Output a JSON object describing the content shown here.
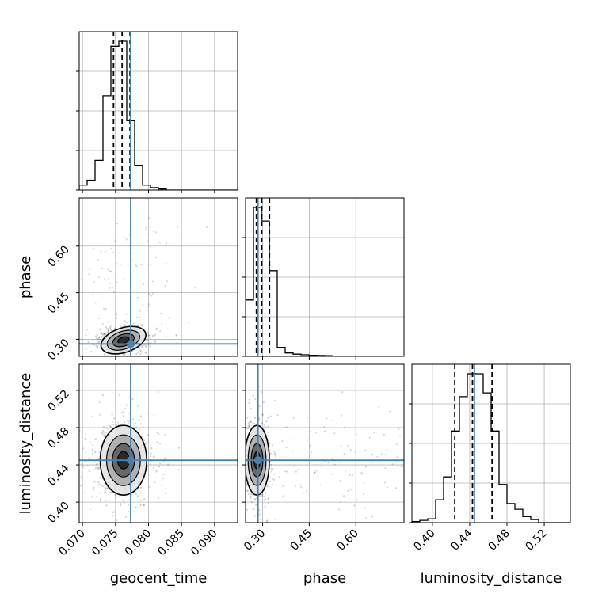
{
  "chart_data": {
    "type": "corner",
    "parameters": [
      "geocent_time",
      "phase",
      "luminosity_distance"
    ],
    "truths": [
      0.0773,
      0.285,
      0.445
    ],
    "truth_color": "#4682b4",
    "ranges": [
      [
        0.0695,
        0.0935
      ],
      [
        0.245,
        0.755
      ],
      [
        0.378,
        0.548
      ]
    ],
    "ticks": {
      "geocent_time": {
        "values": [
          0.07,
          0.075,
          0.08,
          0.085,
          0.09
        ],
        "labels": [
          "0.070",
          "0.075",
          "0.080",
          "0.085",
          "0.090"
        ]
      },
      "phase": {
        "values": [
          0.3,
          0.45,
          0.6
        ],
        "labels": [
          "0.30",
          "0.45",
          "0.60"
        ]
      },
      "luminosity_distance": {
        "values": [
          0.4,
          0.44,
          0.48,
          0.52
        ],
        "labels": [
          "0.40",
          "0.44",
          "0.48",
          "0.52"
        ]
      }
    },
    "quantiles": {
      "geocent_time": [
        0.0747,
        0.076,
        0.0772
      ],
      "phase": [
        0.28,
        0.297,
        0.322
      ],
      "luminosity_distance": [
        0.424,
        0.443,
        0.464
      ]
    },
    "histograms": {
      "geocent_time": {
        "edges": [
          0.0695,
          0.0707,
          0.0719,
          0.0731,
          0.0743,
          0.0755,
          0.0767,
          0.0779,
          0.0791,
          0.0803,
          0.0815,
          0.0827,
          0.0935
        ],
        "counts": [
          1,
          2,
          6,
          19,
          29,
          30,
          14,
          5,
          1,
          0.5,
          0.2,
          0
        ]
      },
      "phase": {
        "edges": [
          0.245,
          0.2705,
          0.296,
          0.3215,
          0.347,
          0.3725,
          0.398,
          0.4235,
          0.449,
          0.4745,
          0.5,
          0.5255,
          0.755
        ],
        "counts": [
          25,
          66,
          60,
          38,
          4,
          1.5,
          1,
          0.7,
          0.5,
          0.4,
          0.3,
          0
        ]
      },
      "luminosity_distance": {
        "edges": [
          0.378,
          0.3865,
          0.395,
          0.4035,
          0.412,
          0.4205,
          0.429,
          0.4375,
          0.446,
          0.4545,
          0.463,
          0.4715,
          0.48,
          0.4885,
          0.497,
          0.5055,
          0.514,
          0.548
        ],
        "counts": [
          0.3,
          0.6,
          1,
          6,
          12,
          24,
          33,
          39,
          39,
          34,
          24,
          10,
          5,
          3.5,
          1.6,
          0.8,
          0
        ]
      }
    },
    "grid": true,
    "axis_labels": [
      "geocent_time",
      "phase",
      "luminosity_distance"
    ],
    "axis_label_phase": "phase",
    "axis_label_distance": "luminosity_distance"
  }
}
